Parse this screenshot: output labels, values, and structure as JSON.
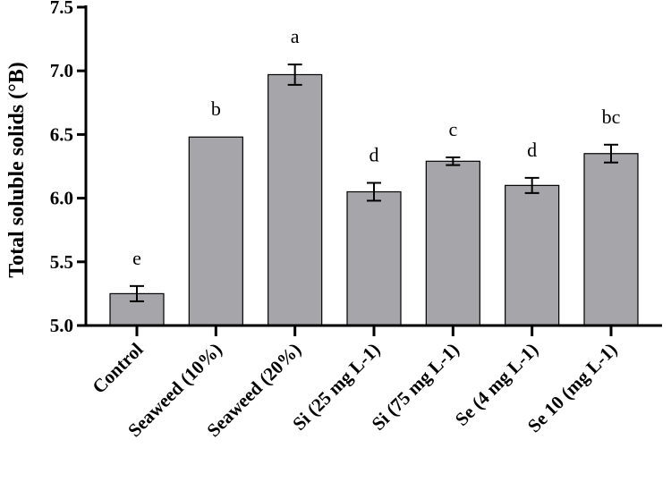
{
  "chart_data": {
    "type": "bar",
    "ylabel": "Total soluble solids (°B)",
    "ylim": [
      5.0,
      7.5
    ],
    "yticks": [
      5.0,
      5.5,
      6.0,
      6.5,
      7.0,
      7.5
    ],
    "ytick_labels": [
      "5.0",
      "5.5",
      "6.0",
      "6.5",
      "7.0",
      "7.5"
    ],
    "categories": [
      "Control",
      "Seaweed (10%)",
      "Seaweed (20%)",
      "Si (25 mg L-1)",
      "Si (75 mg L-1)",
      "Se (4 mg L-1)",
      "Se 10 (mg L-1)"
    ],
    "values": [
      5.25,
      6.48,
      6.97,
      6.05,
      6.29,
      6.1,
      6.35
    ],
    "errors": [
      0.06,
      0.0,
      0.08,
      0.07,
      0.03,
      0.06,
      0.07
    ],
    "significance": [
      "e",
      "b",
      "a",
      "d",
      "c",
      "d",
      "bc"
    ],
    "bar_color": "#a6a6aa",
    "grid": false
  }
}
